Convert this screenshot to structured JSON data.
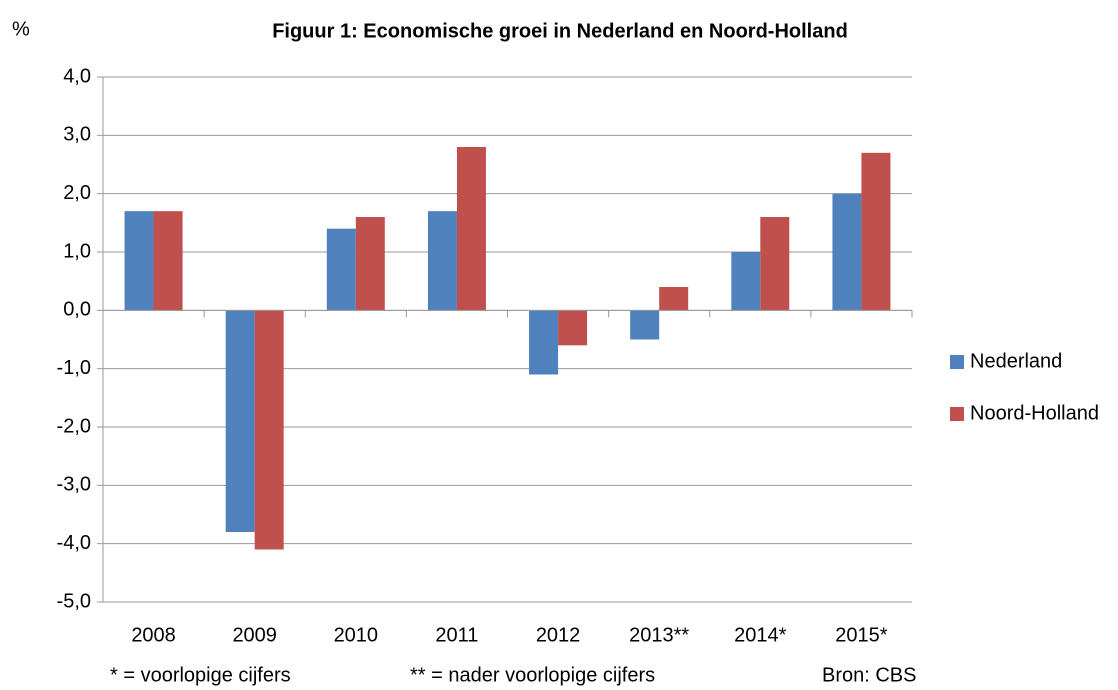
{
  "chart_data": {
    "type": "bar",
    "title": "Figuur 1: Economische groei in Nederland en Noord-Holland",
    "y_label": "%",
    "categories": [
      "2008",
      "2009",
      "2010",
      "2011",
      "2012",
      "2013**",
      "2014*",
      "2015*"
    ],
    "series": [
      {
        "name": "Nederland",
        "color": "#4f81bd",
        "values": [
          1.7,
          -3.8,
          1.4,
          1.7,
          -1.1,
          -0.5,
          1.0,
          2.0
        ]
      },
      {
        "name": "Noord-Holland",
        "color": "#c0504d",
        "values": [
          1.7,
          -4.1,
          1.6,
          2.8,
          -0.6,
          0.4,
          1.6,
          2.7
        ]
      }
    ],
    "ylim": [
      -5,
      4
    ],
    "yticks": [
      {
        "value": -5,
        "label": "-5,0"
      },
      {
        "value": -4,
        "label": "-4,0"
      },
      {
        "value": -3,
        "label": "-3,0"
      },
      {
        "value": -2,
        "label": "-2,0"
      },
      {
        "value": -1,
        "label": "-1,0"
      },
      {
        "value": 0,
        "label": "0,0"
      },
      {
        "value": 1,
        "label": "1,0"
      },
      {
        "value": 2,
        "label": "2,0"
      },
      {
        "value": 3,
        "label": "3,0"
      },
      {
        "value": 4,
        "label": "4,0"
      }
    ],
    "grid": true,
    "legend": "right",
    "notes": [
      "* = voorlopige cijfers",
      "** = nader voorlopige cijfers"
    ],
    "source": "Bron: CBS"
  }
}
